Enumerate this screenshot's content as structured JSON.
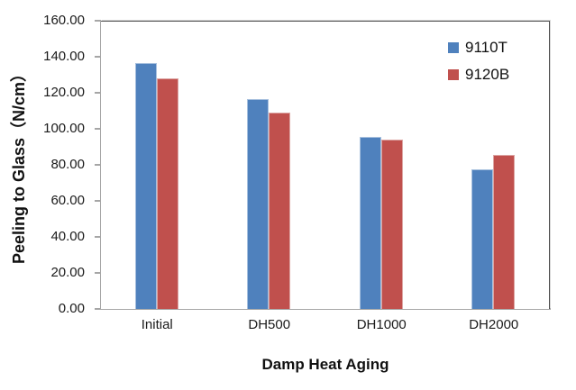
{
  "chart_data": {
    "type": "bar",
    "title": "",
    "xlabel": "Damp Heat Aging",
    "ylabel": "Peeling to  Glass（N/cm）",
    "categories": [
      "Initial",
      "DH500",
      "DH1000",
      "DH2000"
    ],
    "series": [
      {
        "name": "9110T",
        "color": "#4f81bd",
        "border_color": "#a7c0de",
        "values": [
          137.0,
          117.0,
          96.0,
          77.5
        ]
      },
      {
        "name": "9120B",
        "color": "#c0504d",
        "border_color": "#dca5a3",
        "values": [
          128.5,
          109.5,
          94.5,
          86.0
        ]
      }
    ],
    "ylim": [
      0,
      160
    ],
    "ytick_step": 20,
    "ytick_labels": [
      "0.00",
      "20.00",
      "40.00",
      "60.00",
      "80.00",
      "100.00",
      "120.00",
      "140.00",
      "160.00"
    ],
    "grid": false,
    "legend_position": "top-right-inside",
    "axis_color": "#a6a6a6",
    "frame_color": "#4d4d4d"
  }
}
